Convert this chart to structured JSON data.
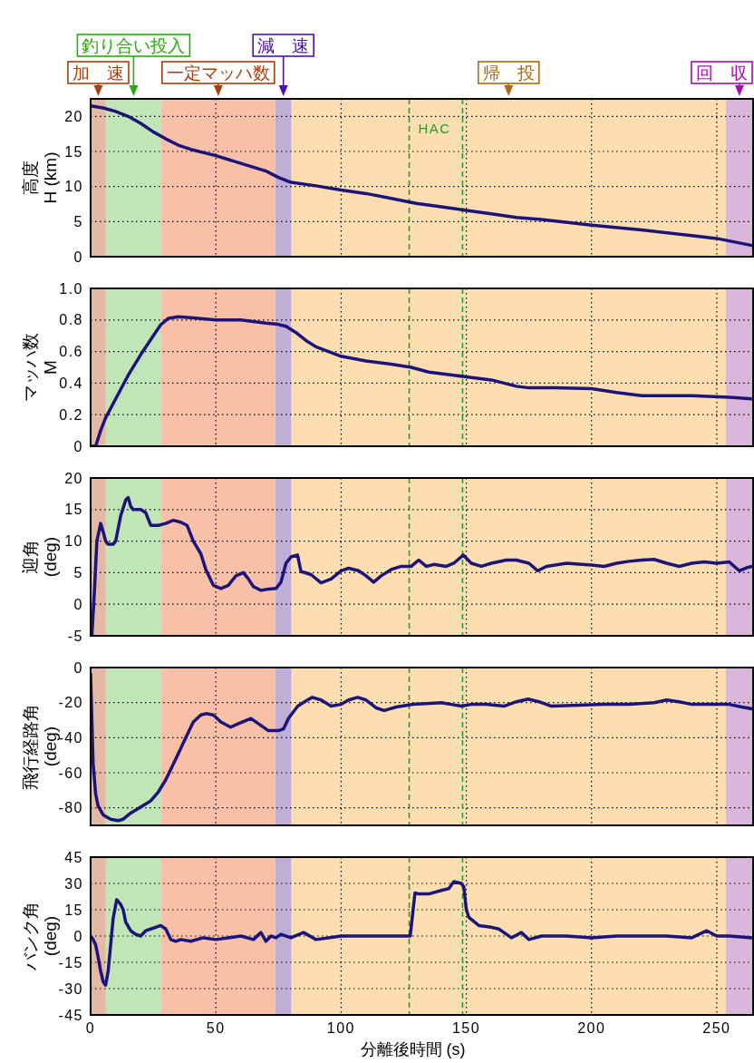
{
  "chart_data": [
    {
      "type": "line",
      "ylabel": "高度\nH (km)",
      "xlim": [
        0,
        264.5
      ],
      "xticks": [
        0,
        50,
        100,
        150,
        200,
        250
      ],
      "ylim": [
        0,
        22.5
      ],
      "yticks": [
        0,
        5,
        10,
        15,
        20
      ],
      "grid": true,
      "tick_labels": "y",
      "series": [
        {
          "color": "#1c1478",
          "x": [
            0,
            5,
            10,
            15,
            20,
            25,
            30,
            35,
            40,
            50,
            60,
            70,
            75,
            80,
            90,
            100,
            110,
            120,
            130,
            140,
            150,
            160,
            170,
            180,
            200,
            220,
            240,
            250,
            264
          ],
          "values": [
            21.5,
            21.2,
            20.7,
            20.0,
            19.0,
            17.8,
            16.8,
            15.9,
            15.3,
            14.4,
            13.3,
            12.2,
            11.3,
            10.6,
            10.1,
            9.5,
            9.0,
            8.3,
            7.6,
            7.1,
            6.6,
            6.1,
            5.6,
            5.3,
            4.5,
            3.8,
            3.0,
            2.6,
            1.6
          ]
        }
      ],
      "bands": [
        {
          "axis": "x",
          "from": 0,
          "to": 6.1,
          "color": "#e3b9a6",
          "label": "加　速"
        },
        {
          "axis": "x",
          "from": 6.1,
          "to": 28.2,
          "color": "#c0e6b8",
          "label": "釣り合い投入"
        },
        {
          "axis": "x",
          "from": 28.2,
          "to": 73.7,
          "color": "#f9c0a8",
          "label": "一定マッハ数"
        },
        {
          "axis": "x",
          "from": 73.7,
          "to": 80.2,
          "color": "#bfaed6",
          "label": "減　速"
        },
        {
          "axis": "x",
          "from": 80.2,
          "to": 253.6,
          "color": "#fcdeb0",
          "label": "帰　投"
        },
        {
          "axis": "x",
          "from": 253.6,
          "to": 264.5,
          "color": "#d9b6da",
          "label": "回　収"
        }
      ],
      "ref_lines": [
        {
          "axis": "x",
          "value": 127.2,
          "color": "#22a02a",
          "line_style": "dashed",
          "label": "HAC"
        },
        {
          "axis": "x",
          "value": 148.5,
          "color": "#22a02a",
          "line_style": "dashed"
        }
      ]
    },
    {
      "type": "line",
      "ylabel": "マッハ数\nM",
      "xlim": [
        0,
        264.5
      ],
      "xticks": [
        0,
        50,
        100,
        150,
        200,
        250
      ],
      "ylim": [
        0,
        1
      ],
      "yticks": [
        0,
        0.2,
        0.4,
        0.6,
        0.8,
        {
          "value": 1,
          "label": "1.0"
        }
      ],
      "grid": true,
      "tick_labels": "y",
      "series": [
        {
          "color": "#1c1478",
          "x": [
            0,
            2,
            4,
            6,
            10,
            15,
            20,
            25,
            28,
            31,
            35,
            40,
            50,
            60,
            65,
            70,
            74,
            78,
            82,
            86,
            90,
            95,
            100,
            110,
            120,
            128,
            135,
            145,
            150,
            160,
            170,
            175,
            185,
            200,
            210,
            220,
            240,
            255,
            264
          ],
          "values": [
            0,
            0,
            0.1,
            0.18,
            0.3,
            0.45,
            0.58,
            0.7,
            0.77,
            0.81,
            0.82,
            0.815,
            0.8,
            0.8,
            0.79,
            0.78,
            0.775,
            0.76,
            0.72,
            0.67,
            0.63,
            0.6,
            0.57,
            0.54,
            0.52,
            0.5,
            0.47,
            0.45,
            0.44,
            0.42,
            0.38,
            0.37,
            0.37,
            0.365,
            0.34,
            0.32,
            0.32,
            0.31,
            0.3
          ]
        }
      ],
      "bands": [
        {
          "axis": "x",
          "from": 0,
          "to": 6.1,
          "color": "#e3b9a6"
        },
        {
          "axis": "x",
          "from": 6.1,
          "to": 28.2,
          "color": "#c0e6b8"
        },
        {
          "axis": "x",
          "from": 28.2,
          "to": 73.7,
          "color": "#f9c0a8"
        },
        {
          "axis": "x",
          "from": 73.7,
          "to": 80.2,
          "color": "#bfaed6"
        },
        {
          "axis": "x",
          "from": 80.2,
          "to": 253.6,
          "color": "#fcdeb0"
        },
        {
          "axis": "x",
          "from": 253.6,
          "to": 264.5,
          "color": "#d9b6da"
        }
      ],
      "ref_lines": [
        {
          "axis": "x",
          "value": 127.2,
          "color": "#22a02a",
          "line_style": "dashed"
        },
        {
          "axis": "x",
          "value": 148.5,
          "color": "#22a02a",
          "line_style": "dashed"
        }
      ]
    },
    {
      "type": "line",
      "ylabel": "迎角\n(deg)",
      "xlim": [
        0,
        264.5
      ],
      "xticks": [
        0,
        50,
        100,
        150,
        200,
        250
      ],
      "ylim": [
        -5,
        20
      ],
      "yticks": [
        -5,
        0,
        5,
        10,
        15,
        20
      ],
      "grid": true,
      "tick_labels": "y",
      "series": [
        {
          "color": "#1c1478",
          "x": [
            0.5,
            1.5,
            2.5,
            4,
            5,
            6,
            7,
            9,
            10,
            12,
            14,
            15,
            16,
            17,
            20,
            22,
            24,
            27,
            30,
            33,
            36,
            38.5,
            41,
            44,
            46,
            49,
            52,
            55,
            58,
            61,
            63,
            65,
            68,
            71,
            74,
            76,
            78,
            80,
            82.6,
            84,
            88,
            92,
            96,
            100,
            103,
            107,
            110,
            113,
            116,
            120,
            124,
            128,
            131,
            134,
            137,
            142,
            145,
            148.8,
            152,
            156,
            160,
            166,
            170,
            175,
            178.5,
            182,
            190,
            200,
            205,
            210,
            215,
            220,
            225,
            230,
            235,
            240,
            245,
            250,
            255,
            257,
            259,
            262,
            264
          ],
          "values": [
            -5,
            2,
            10,
            12.8,
            11.5,
            10,
            9.5,
            9.5,
            10,
            14,
            16.5,
            16.9,
            15.5,
            15,
            15,
            14.5,
            12.5,
            12.5,
            12.8,
            13.3,
            13,
            12.5,
            10,
            8,
            5.5,
            3,
            2.5,
            3,
            4.5,
            5,
            4,
            2.8,
            2.2,
            2.4,
            2.5,
            3.5,
            6.5,
            7.5,
            7.8,
            5.2,
            4.7,
            3.4,
            4,
            5.3,
            5.7,
            5.3,
            4.5,
            3.5,
            4.5,
            5.5,
            6,
            6,
            7,
            6,
            6.3,
            6,
            6.5,
            7.8,
            6.5,
            6,
            6.5,
            7,
            7,
            6.5,
            5.3,
            6,
            6.5,
            6.2,
            6,
            6.5,
            6.8,
            7,
            7.1,
            6.5,
            6,
            6.5,
            6.7,
            6.5,
            6.7,
            6,
            5.3,
            5.8,
            6
          ]
        }
      ],
      "bands": [
        {
          "axis": "x",
          "from": 0,
          "to": 6.1,
          "color": "#e3b9a6"
        },
        {
          "axis": "x",
          "from": 6.1,
          "to": 28.2,
          "color": "#c0e6b8"
        },
        {
          "axis": "x",
          "from": 28.2,
          "to": 73.7,
          "color": "#f9c0a8"
        },
        {
          "axis": "x",
          "from": 73.7,
          "to": 80.2,
          "color": "#bfaed6"
        },
        {
          "axis": "x",
          "from": 80.2,
          "to": 253.6,
          "color": "#fcdeb0"
        },
        {
          "axis": "x",
          "from": 253.6,
          "to": 264.5,
          "color": "#d9b6da"
        }
      ],
      "ref_lines": [
        {
          "axis": "x",
          "value": 127.2,
          "color": "#22a02a",
          "line_style": "dashed"
        },
        {
          "axis": "x",
          "value": 148.5,
          "color": "#22a02a",
          "line_style": "dashed"
        }
      ]
    },
    {
      "type": "line",
      "ylabel": "飛行経路角\n(deg)",
      "xlim": [
        0,
        264.5
      ],
      "xticks": [
        0,
        50,
        100,
        150,
        200,
        250
      ],
      "ylim": [
        -90,
        0
      ],
      "yticks": [
        -80,
        -60,
        -40,
        -20,
        0
      ],
      "grid": true,
      "tick_labels": "y",
      "series": [
        {
          "color": "#1c1478",
          "x": [
            0,
            0.5,
            1,
            2,
            3,
            5,
            8,
            11,
            13,
            16,
            20,
            24,
            27,
            30,
            34.4,
            38,
            41,
            44,
            46,
            49,
            52,
            55.9,
            59,
            64,
            67,
            71,
            75,
            77,
            79,
            82.7,
            86,
            88.5,
            92,
            96,
            100,
            103,
            106.6,
            110,
            114,
            117.2,
            122,
            128.7,
            134,
            140,
            144,
            148,
            152,
            158,
            165,
            170,
            174.7,
            179,
            184,
            195,
            205,
            215,
            225,
            230,
            235,
            240,
            250,
            255,
            260,
            264
          ],
          "values": [
            -3.6,
            -30,
            -55,
            -72,
            -79,
            -84,
            -86.5,
            -87.3,
            -86.5,
            -83,
            -79.5,
            -76,
            -71,
            -64,
            -51,
            -40,
            -31,
            -27,
            -26.3,
            -27,
            -31,
            -34,
            -32,
            -29,
            -32,
            -36,
            -36,
            -35,
            -29,
            -22,
            -19,
            -17,
            -18.5,
            -22,
            -21,
            -18.5,
            -17,
            -18.5,
            -23,
            -24.5,
            -22.5,
            -21,
            -20.5,
            -20,
            -21,
            -22,
            -21,
            -21,
            -22,
            -19.5,
            -18,
            -19.5,
            -22,
            -21.5,
            -21,
            -21,
            -20,
            -18.5,
            -19.5,
            -21,
            -21,
            -21,
            -22.5,
            -23.5
          ]
        }
      ],
      "bands": [
        {
          "axis": "x",
          "from": 0,
          "to": 6.1,
          "color": "#e3b9a6"
        },
        {
          "axis": "x",
          "from": 6.1,
          "to": 28.2,
          "color": "#c0e6b8"
        },
        {
          "axis": "x",
          "from": 28.2,
          "to": 73.7,
          "color": "#f9c0a8"
        },
        {
          "axis": "x",
          "from": 73.7,
          "to": 80.2,
          "color": "#bfaed6"
        },
        {
          "axis": "x",
          "from": 80.2,
          "to": 253.6,
          "color": "#fcdeb0"
        },
        {
          "axis": "x",
          "from": 253.6,
          "to": 264.5,
          "color": "#d9b6da"
        }
      ],
      "ref_lines": [
        {
          "axis": "x",
          "value": 127.2,
          "color": "#22a02a",
          "line_style": "dashed"
        },
        {
          "axis": "x",
          "value": 148.5,
          "color": "#22a02a",
          "line_style": "dashed"
        }
      ]
    },
    {
      "type": "line",
      "ylabel": "バンク角\n(deg)",
      "xlabel": "分離後時間 (s)",
      "xlim": [
        0,
        264.5
      ],
      "xticks": [
        0,
        50,
        100,
        150,
        200,
        250
      ],
      "ylim": [
        -45,
        45
      ],
      "yticks": [
        -45,
        -30,
        -15,
        0,
        15,
        30,
        45
      ],
      "grid": true,
      "series": [
        {
          "color": "#1c1478",
          "x": [
            0,
            1,
            2,
            3,
            4,
            5,
            6,
            7,
            8,
            9,
            10.4,
            12,
            13,
            14,
            16,
            18,
            20,
            22,
            24,
            26,
            28,
            30,
            32,
            34,
            36,
            40,
            45,
            50,
            55,
            60,
            65,
            68,
            70,
            72,
            74,
            76,
            80,
            85,
            90,
            95,
            100,
            110,
            120,
            127.6,
            129.5,
            131,
            135,
            140,
            143,
            145,
            148,
            149,
            150,
            151,
            155,
            160,
            163,
            165,
            168,
            172,
            175,
            180,
            190,
            200,
            210,
            220,
            230,
            240,
            246,
            250,
            255,
            264
          ],
          "values": [
            0,
            -2,
            -5,
            -12,
            -20,
            -26,
            -28,
            -20,
            -5,
            10,
            20.7,
            18,
            15,
            8,
            3,
            1,
            0,
            3,
            4,
            5,
            6,
            4,
            -2,
            -3,
            -2,
            -3,
            -1,
            -2,
            -1,
            0,
            -2,
            2,
            -3,
            0,
            -1,
            1,
            -1,
            2,
            -2,
            -1,
            0,
            0,
            0,
            0,
            24.6,
            24,
            24,
            26,
            27,
            31,
            30,
            28,
            15,
            10.7,
            6,
            5,
            4,
            2,
            -1,
            2,
            -2,
            0,
            0,
            -1,
            0,
            0,
            0,
            -1,
            3,
            0,
            0,
            -1
          ]
        }
      ],
      "bands": [
        {
          "axis": "x",
          "from": 0,
          "to": 6.1,
          "color": "#e3b9a6"
        },
        {
          "axis": "x",
          "from": 6.1,
          "to": 28.2,
          "color": "#c0e6b8"
        },
        {
          "axis": "x",
          "from": 28.2,
          "to": 73.7,
          "color": "#f9c0a8"
        },
        {
          "axis": "x",
          "from": 73.7,
          "to": 80.2,
          "color": "#bfaed6"
        },
        {
          "axis": "x",
          "from": 80.2,
          "to": 253.6,
          "color": "#fcdeb0"
        },
        {
          "axis": "x",
          "from": 253.6,
          "to": 264.5,
          "color": "#d9b6da"
        }
      ],
      "ref_lines": [
        {
          "axis": "x",
          "value": 127.2,
          "color": "#22a02a",
          "line_style": "dashed"
        },
        {
          "axis": "x",
          "value": 148.5,
          "color": "#22a02a",
          "line_style": "dashed"
        }
      ]
    }
  ]
}
